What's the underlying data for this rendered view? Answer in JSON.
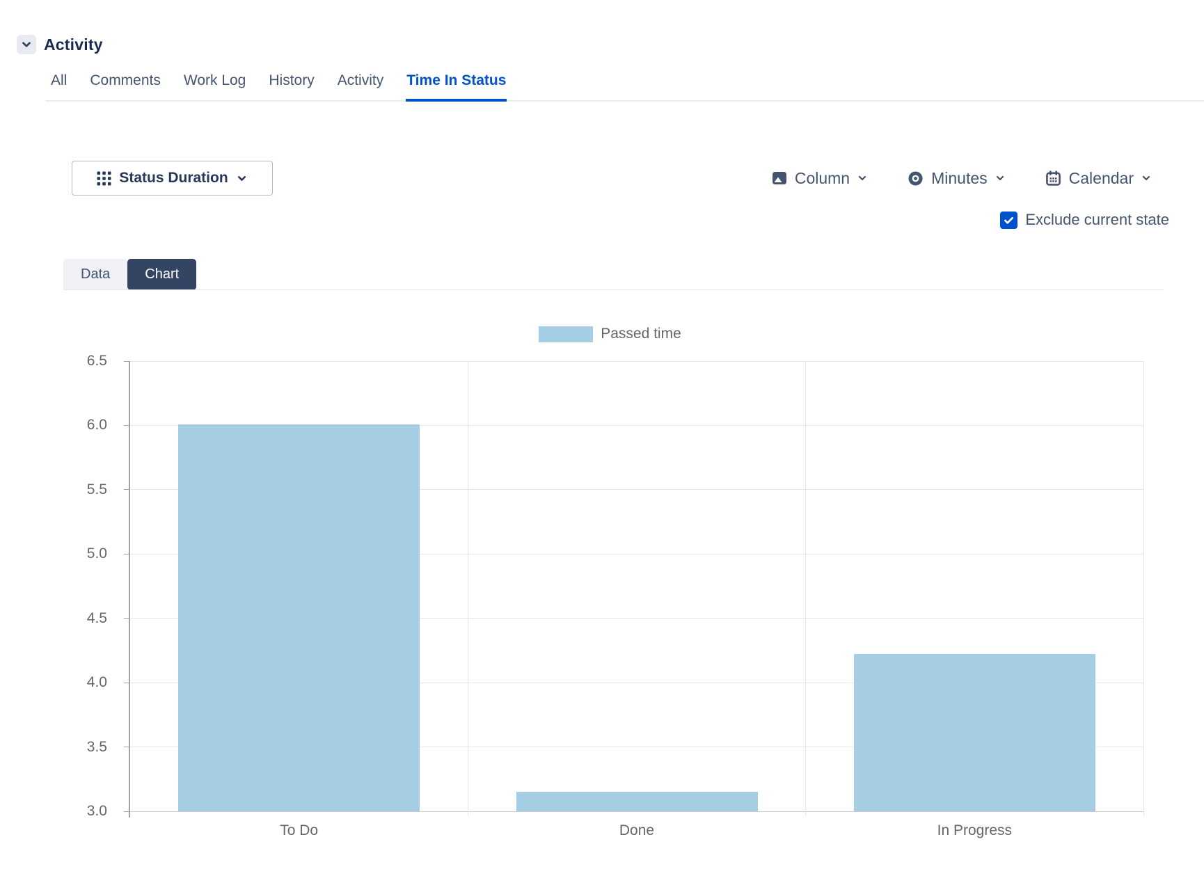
{
  "header": {
    "title": "Activity"
  },
  "activity_tabs": {
    "items": [
      {
        "label": "All",
        "active": false
      },
      {
        "label": "Comments",
        "active": false
      },
      {
        "label": "Work Log",
        "active": false
      },
      {
        "label": "History",
        "active": false
      },
      {
        "label": "Activity",
        "active": false
      },
      {
        "label": "Time In Status",
        "active": true
      }
    ]
  },
  "toolbar": {
    "report_type": {
      "label": "Status Duration",
      "icon": "grid"
    },
    "dropdowns": [
      {
        "label": "Column",
        "icon": "image"
      },
      {
        "label": "Minutes",
        "icon": "eye"
      },
      {
        "label": "Calendar",
        "icon": "calendar"
      }
    ],
    "exclude_current_state": {
      "label": "Exclude current state",
      "checked": true
    }
  },
  "view_tabs": {
    "items": [
      {
        "label": "Data",
        "active": false
      },
      {
        "label": "Chart",
        "active": true
      }
    ]
  },
  "chart_data": {
    "type": "bar",
    "title": "",
    "categories": [
      "To Do",
      "Done",
      "In Progress"
    ],
    "series": [
      {
        "name": "Passed time",
        "values": [
          6.01,
          3.15,
          4.22
        ],
        "color": "#a5cde4"
      }
    ],
    "legend": {
      "position": "top",
      "entries": [
        "Passed time"
      ]
    },
    "xlabel": "",
    "ylabel": "",
    "ylim": [
      3.0,
      6.5
    ],
    "ytick_step": 0.5,
    "grid": true
  },
  "colors": {
    "accent_blue": "#0052cc",
    "dark_navy": "#172b4d",
    "control_text": "#44546f",
    "chart_tab_bg": "#344563",
    "bar_fill": "#a5cde4",
    "axis_text": "#666666",
    "gridline": "#e6e6e6"
  }
}
